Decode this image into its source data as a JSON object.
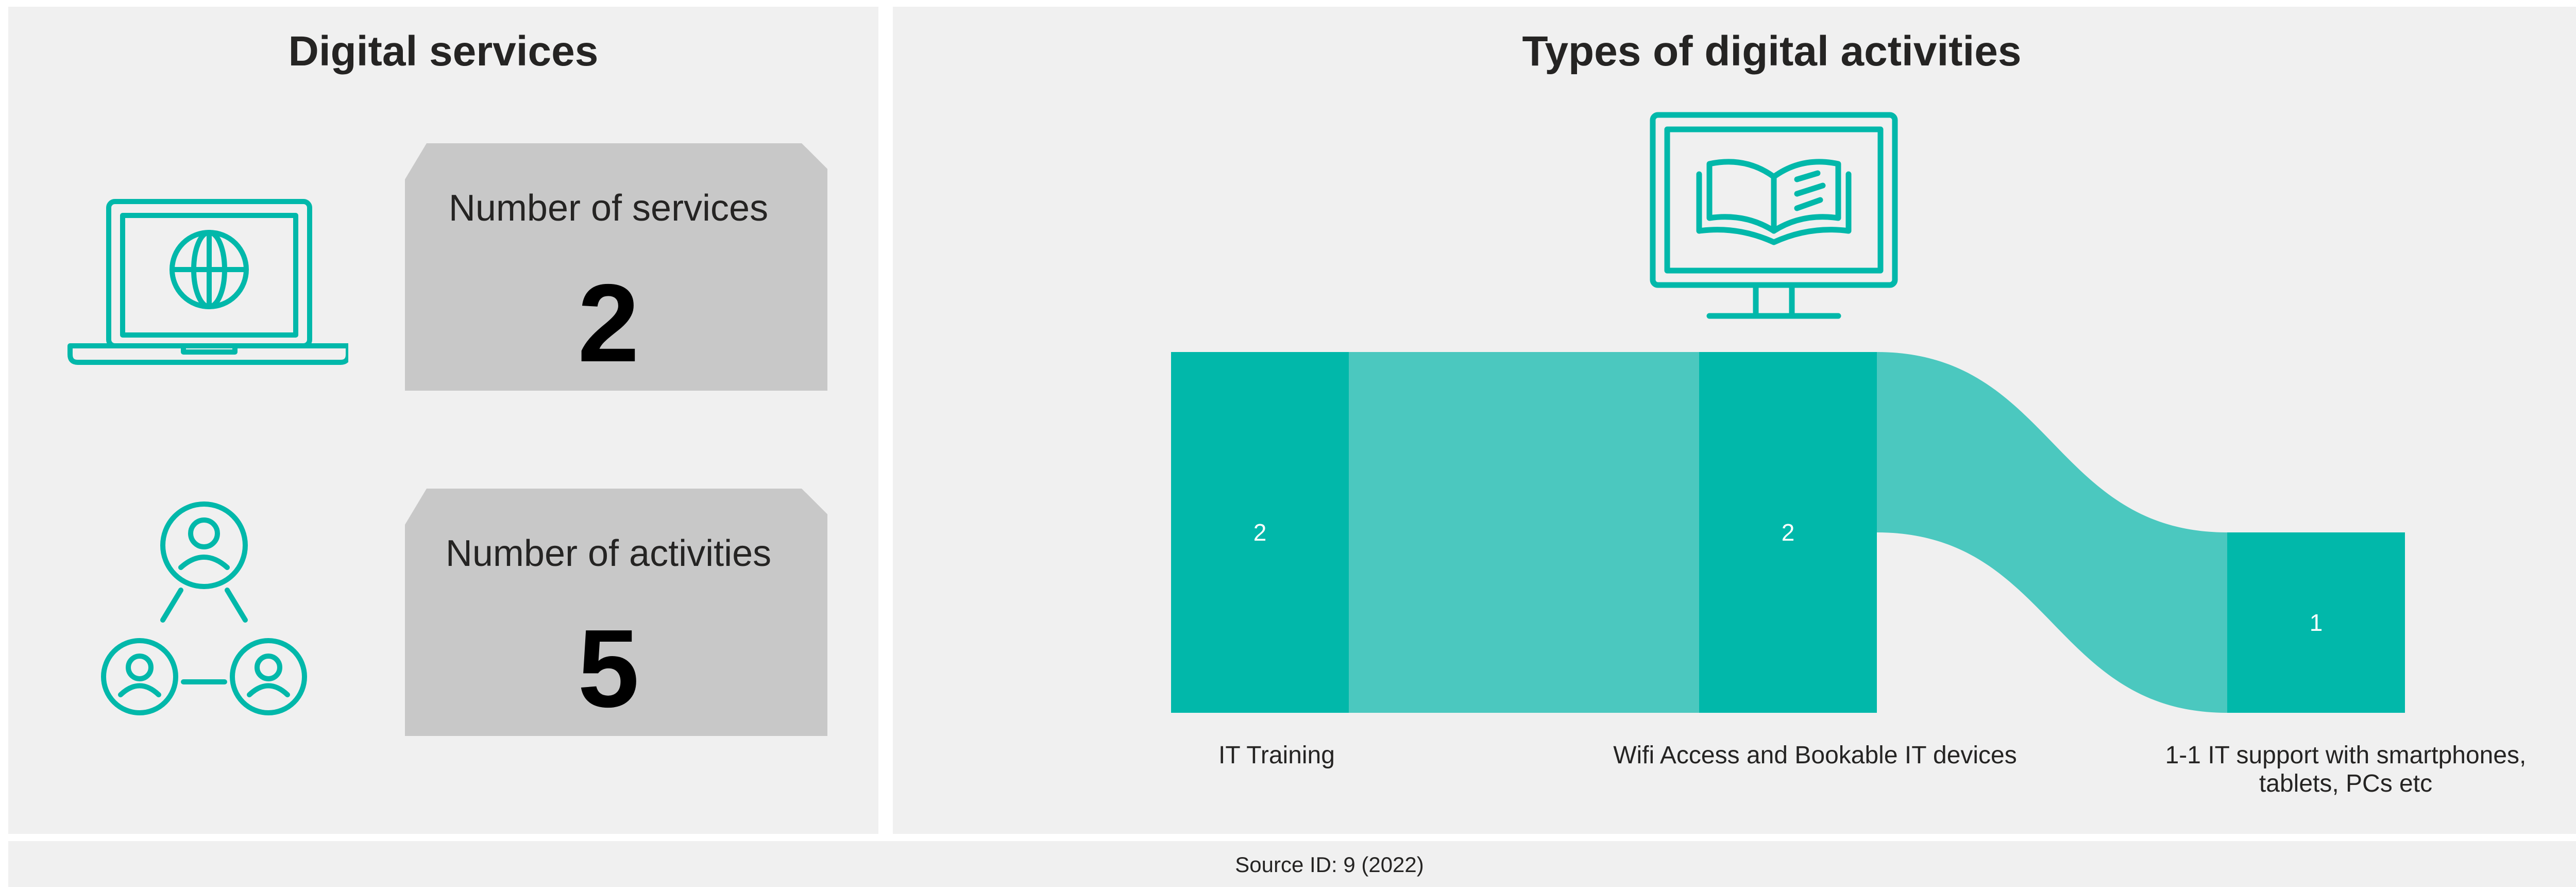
{
  "left_panel": {
    "title": "Digital services",
    "cards": [
      {
        "label": "Number of services",
        "value": "2"
      },
      {
        "label": "Number of activities",
        "value": "5"
      }
    ],
    "icons": [
      "laptop-globe-icon",
      "people-network-icon"
    ]
  },
  "right_panel": {
    "title": "Types of digital activities",
    "icon": "monitor-book-icon"
  },
  "footer": {
    "source": "Source ID: 9 (2022)"
  },
  "colors": {
    "node": "#01b8aa",
    "link": "#4bc8bf",
    "panel": "#f0f0f0",
    "card": "#c8c8c8"
  },
  "chart_data": {
    "type": "sankey",
    "nodes": [
      {
        "label": "IT Training",
        "value": 2
      },
      {
        "label": "Wifi Access and Bookable IT devices",
        "value": 2
      },
      {
        "label": "1-1 IT support with smartphones, tablets, PCs etc",
        "value": 1
      }
    ],
    "links": [
      {
        "source": "IT Training",
        "target": "Wifi Access and Bookable IT devices",
        "value": 2
      },
      {
        "source": "Wifi Access and Bookable IT devices",
        "target": "1-1 IT support with smartphones, tablets, PCs etc",
        "value": 1
      }
    ]
  }
}
